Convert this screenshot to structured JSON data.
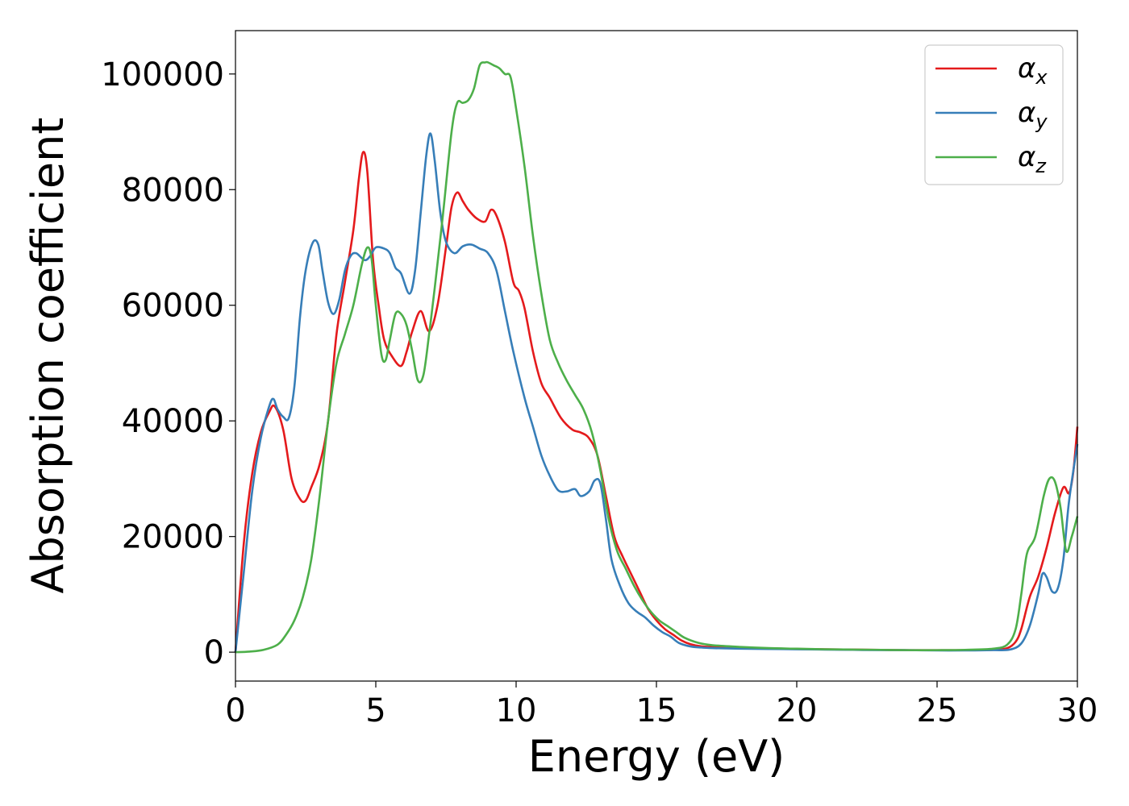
{
  "chart_data": {
    "type": "line",
    "title": "",
    "xlabel": "Energy (eV)",
    "ylabel": "Absorption coefficient",
    "xlim": [
      0,
      30
    ],
    "ylim": [
      -5000,
      107500
    ],
    "xticks": [
      0,
      5,
      10,
      15,
      20,
      25,
      30
    ],
    "xtick_labels": [
      "0",
      "5",
      "10",
      "15",
      "20",
      "25",
      "30"
    ],
    "yticks": [
      0,
      20000,
      40000,
      60000,
      80000,
      100000
    ],
    "ytick_labels": [
      "0",
      "20000",
      "40000",
      "60000",
      "80000",
      "100000"
    ],
    "grid": false,
    "legend_position": "top-right",
    "series": [
      {
        "name": "α",
        "subscript": "x",
        "color": "#e41a1c",
        "x": [
          0,
          0.3,
          0.6,
          0.9,
          1.2,
          1.4,
          1.7,
          2.0,
          2.3,
          2.5,
          2.7,
          3.0,
          3.3,
          3.6,
          3.9,
          4.2,
          4.4,
          4.55,
          4.7,
          4.9,
          5.1,
          5.3,
          5.6,
          5.9,
          6.1,
          6.3,
          6.6,
          6.9,
          7.2,
          7.5,
          7.7,
          7.9,
          8.1,
          8.3,
          8.6,
          8.9,
          9.1,
          9.3,
          9.6,
          9.9,
          10.1,
          10.3,
          10.6,
          10.9,
          11.2,
          11.6,
          12.0,
          12.3,
          12.6,
          12.9,
          13.2,
          13.5,
          13.8,
          14.1,
          14.4,
          14.7,
          15.0,
          15.3,
          15.6,
          15.9,
          16.2,
          16.6,
          17.0,
          17.5,
          18.0,
          19.0,
          20.0,
          21.0,
          22.0,
          23.0,
          24.0,
          25.0,
          26.0,
          27.0,
          27.5,
          27.8,
          28.0,
          28.3,
          28.6,
          28.9,
          29.2,
          29.5,
          29.7,
          29.85,
          30.0
        ],
        "y": [
          0,
          19000,
          31000,
          38000,
          41500,
          42500,
          38500,
          30000,
          26500,
          26200,
          28500,
          32500,
          40000,
          55000,
          64000,
          73000,
          82000,
          86500,
          83000,
          68000,
          60000,
          54000,
          51000,
          49500,
          52000,
          55500,
          59000,
          55500,
          60000,
          70000,
          77000,
          79500,
          78000,
          76500,
          75000,
          74500,
          76500,
          75500,
          71000,
          64000,
          62500,
          59500,
          52000,
          46500,
          44000,
          40500,
          38500,
          38000,
          37000,
          34000,
          27000,
          20000,
          16500,
          13500,
          10500,
          7500,
          5500,
          4000,
          3000,
          2000,
          1400,
          1000,
          900,
          800,
          700,
          650,
          550,
          500,
          450,
          400,
          350,
          350,
          350,
          400,
          700,
          1800,
          4000,
          9500,
          13000,
          18000,
          24000,
          28500,
          27500,
          31000,
          39000
        ]
      },
      {
        "name": "α",
        "subscript": "y",
        "color": "#377eb8",
        "x": [
          0,
          0.3,
          0.6,
          0.9,
          1.2,
          1.35,
          1.5,
          1.7,
          1.9,
          2.1,
          2.3,
          2.5,
          2.75,
          2.95,
          3.1,
          3.3,
          3.5,
          3.7,
          3.9,
          4.1,
          4.3,
          4.6,
          4.8,
          5.0,
          5.3,
          5.5,
          5.7,
          5.9,
          6.2,
          6.4,
          6.6,
          6.8,
          6.95,
          7.1,
          7.3,
          7.5,
          7.8,
          8.1,
          8.4,
          8.7,
          9.0,
          9.3,
          9.6,
          9.9,
          10.3,
          10.6,
          10.9,
          11.2,
          11.5,
          11.8,
          12.1,
          12.3,
          12.6,
          12.8,
          13.0,
          13.2,
          13.4,
          13.7,
          14.0,
          14.3,
          14.6,
          14.9,
          15.2,
          15.5,
          15.8,
          16.2,
          16.6,
          17.0,
          17.5,
          18.0,
          19.0,
          20.0,
          21.0,
          22.0,
          23.0,
          24.0,
          25.0,
          26.0,
          27.0,
          27.6,
          28.0,
          28.3,
          28.6,
          28.75,
          28.9,
          29.1,
          29.3,
          29.5,
          29.7,
          30.0
        ],
        "y": [
          0,
          14000,
          28000,
          37000,
          42500,
          43800,
          42000,
          40700,
          40500,
          46000,
          58000,
          66000,
          70800,
          70500,
          66000,
          60500,
          58500,
          61000,
          66000,
          68500,
          69000,
          67800,
          68500,
          70000,
          69800,
          69000,
          66500,
          65500,
          62000,
          66000,
          76000,
          86000,
          89700,
          85000,
          76000,
          71000,
          69000,
          70200,
          70500,
          69800,
          69000,
          66000,
          59000,
          52000,
          44000,
          39000,
          34000,
          30500,
          28000,
          27800,
          28200,
          27000,
          27800,
          29700,
          29200,
          23000,
          16000,
          11500,
          8500,
          7000,
          6000,
          4600,
          3500,
          2700,
          1600,
          1000,
          800,
          700,
          650,
          600,
          550,
          500,
          450,
          400,
          350,
          350,
          300,
          300,
          350,
          450,
          1500,
          4500,
          10000,
          13500,
          13000,
          10500,
          11000,
          16000,
          26000,
          36000
        ]
      },
      {
        "name": "α",
        "subscript": "z",
        "color": "#4daf4a",
        "x": [
          0,
          0.5,
          1.0,
          1.5,
          1.8,
          2.1,
          2.4,
          2.7,
          3.0,
          3.3,
          3.6,
          3.9,
          4.2,
          4.5,
          4.7,
          4.85,
          5.0,
          5.2,
          5.35,
          5.5,
          5.7,
          5.9,
          6.1,
          6.3,
          6.5,
          6.7,
          6.9,
          7.1,
          7.4,
          7.7,
          7.9,
          8.1,
          8.3,
          8.5,
          8.7,
          8.9,
          9.0,
          9.2,
          9.4,
          9.6,
          9.8,
          10.0,
          10.3,
          10.6,
          10.9,
          11.2,
          11.5,
          11.8,
          12.1,
          12.4,
          12.7,
          13.0,
          13.3,
          13.6,
          13.9,
          14.2,
          14.5,
          14.8,
          15.1,
          15.4,
          15.7,
          16.0,
          16.5,
          17.0,
          18.0,
          19.0,
          20.0,
          21.0,
          22.0,
          23.0,
          24.0,
          25.0,
          26.0,
          27.0,
          27.5,
          27.8,
          28.0,
          28.2,
          28.5,
          28.8,
          29.0,
          29.2,
          29.4,
          29.6,
          29.8,
          30.0
        ],
        "y": [
          0,
          100,
          400,
          1300,
          3000,
          5500,
          9500,
          16000,
          27000,
          40000,
          50000,
          55000,
          60000,
          67000,
          70000,
          68000,
          60000,
          51500,
          50500,
          54000,
          58500,
          58500,
          56500,
          52000,
          47000,
          48000,
          55000,
          63000,
          76000,
          90000,
          95000,
          95000,
          95500,
          97500,
          101500,
          102000,
          102000,
          101500,
          101000,
          100000,
          99500,
          94000,
          84000,
          72000,
          62000,
          54000,
          50000,
          47000,
          44500,
          42000,
          38000,
          31500,
          23000,
          17500,
          14500,
          11500,
          9000,
          7000,
          5500,
          4500,
          3500,
          2500,
          1600,
          1200,
          900,
          700,
          600,
          500,
          450,
          400,
          350,
          350,
          400,
          600,
          1300,
          4000,
          10000,
          17000,
          20000,
          27000,
          30000,
          29500,
          25000,
          17500,
          20000,
          23500
        ]
      }
    ]
  }
}
